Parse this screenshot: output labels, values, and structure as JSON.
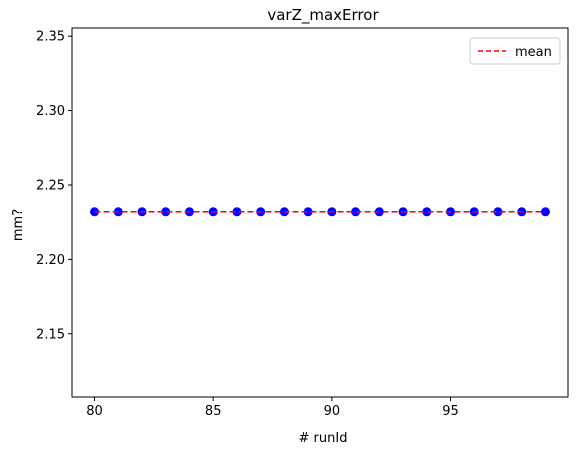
{
  "chart_data": {
    "type": "scatter",
    "title": "varZ_maxError",
    "xlabel": "# runId",
    "ylabel": "mm?",
    "xlim": [
      79.05,
      99.95
    ],
    "ylim": [
      2.1075,
      2.3555
    ],
    "xticks": [
      80,
      85,
      90,
      95
    ],
    "yticks": [
      2.15,
      2.2,
      2.25,
      2.3,
      2.35
    ],
    "xtick_labels": [
      "80",
      "85",
      "90",
      "95"
    ],
    "ytick_labels": [
      "2.15",
      "2.20",
      "2.25",
      "2.30",
      "2.35"
    ],
    "grid": false,
    "legend": {
      "position": "top-right",
      "entries": [
        {
          "label": "mean",
          "style": "dashed-line",
          "color": "#ff0000"
        }
      ]
    },
    "series": [
      {
        "kind": "scatter",
        "color": "#0000ff",
        "x": [
          80,
          81,
          82,
          83,
          84,
          85,
          86,
          87,
          88,
          89,
          90,
          91,
          92,
          93,
          94,
          95,
          96,
          97,
          98,
          99
        ],
        "y": [
          2.232,
          2.232,
          2.232,
          2.232,
          2.232,
          2.232,
          2.232,
          2.232,
          2.232,
          2.232,
          2.232,
          2.232,
          2.232,
          2.232,
          2.232,
          2.232,
          2.232,
          2.232,
          2.232,
          2.232
        ]
      },
      {
        "kind": "line",
        "name": "mean",
        "color": "#ff0000",
        "style": "dashed",
        "x": [
          80,
          99
        ],
        "y": [
          2.232,
          2.232
        ]
      }
    ]
  }
}
